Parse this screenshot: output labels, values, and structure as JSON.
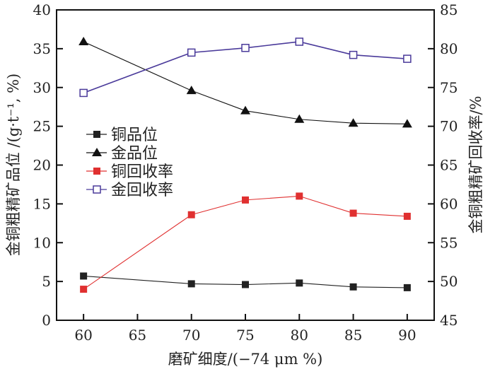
{
  "chart_data": {
    "type": "line",
    "title": "",
    "xlabel": "磨矿细度/(−74 μm %)",
    "ylabel": "金铜粗精矿品位 /(g·t⁻¹, %)",
    "y2label": "金铜粗精矿回收率/%",
    "xlim": [
      57.5,
      92.5
    ],
    "ylim": [
      0,
      40
    ],
    "y2lim": [
      45,
      85
    ],
    "xticks": [
      "60",
      "65",
      "70",
      "75",
      "80",
      "85",
      "90"
    ],
    "yticks": [
      "0",
      "5",
      "10",
      "15",
      "20",
      "25",
      "30",
      "35",
      "40"
    ],
    "y2ticks": [
      "45",
      "50",
      "55",
      "60",
      "65",
      "70",
      "75",
      "80",
      "85"
    ],
    "grid": false,
    "legend_position": "center-left",
    "x": [
      60,
      70,
      75,
      80,
      85,
      90
    ],
    "series": [
      {
        "name": "铜品位",
        "axis": "left",
        "marker": "square-filled",
        "color": "#222222",
        "values": [
          5.7,
          4.7,
          4.6,
          4.8,
          4.3,
          4.2
        ]
      },
      {
        "name": "金品位",
        "axis": "left",
        "marker": "triangle-filled",
        "color": "#111111",
        "values": [
          35.9,
          29.6,
          27.0,
          25.9,
          25.4,
          25.3
        ]
      },
      {
        "name": "铜回收率",
        "axis": "right",
        "marker": "square-filled",
        "color": "#e03030",
        "values": [
          49.0,
          58.6,
          60.5,
          61.0,
          58.8,
          58.4
        ]
      },
      {
        "name": "金回收率",
        "axis": "right",
        "marker": "square-open",
        "color": "#4a3a9a",
        "values": [
          74.3,
          79.5,
          80.1,
          80.9,
          79.2,
          78.7
        ]
      }
    ]
  }
}
